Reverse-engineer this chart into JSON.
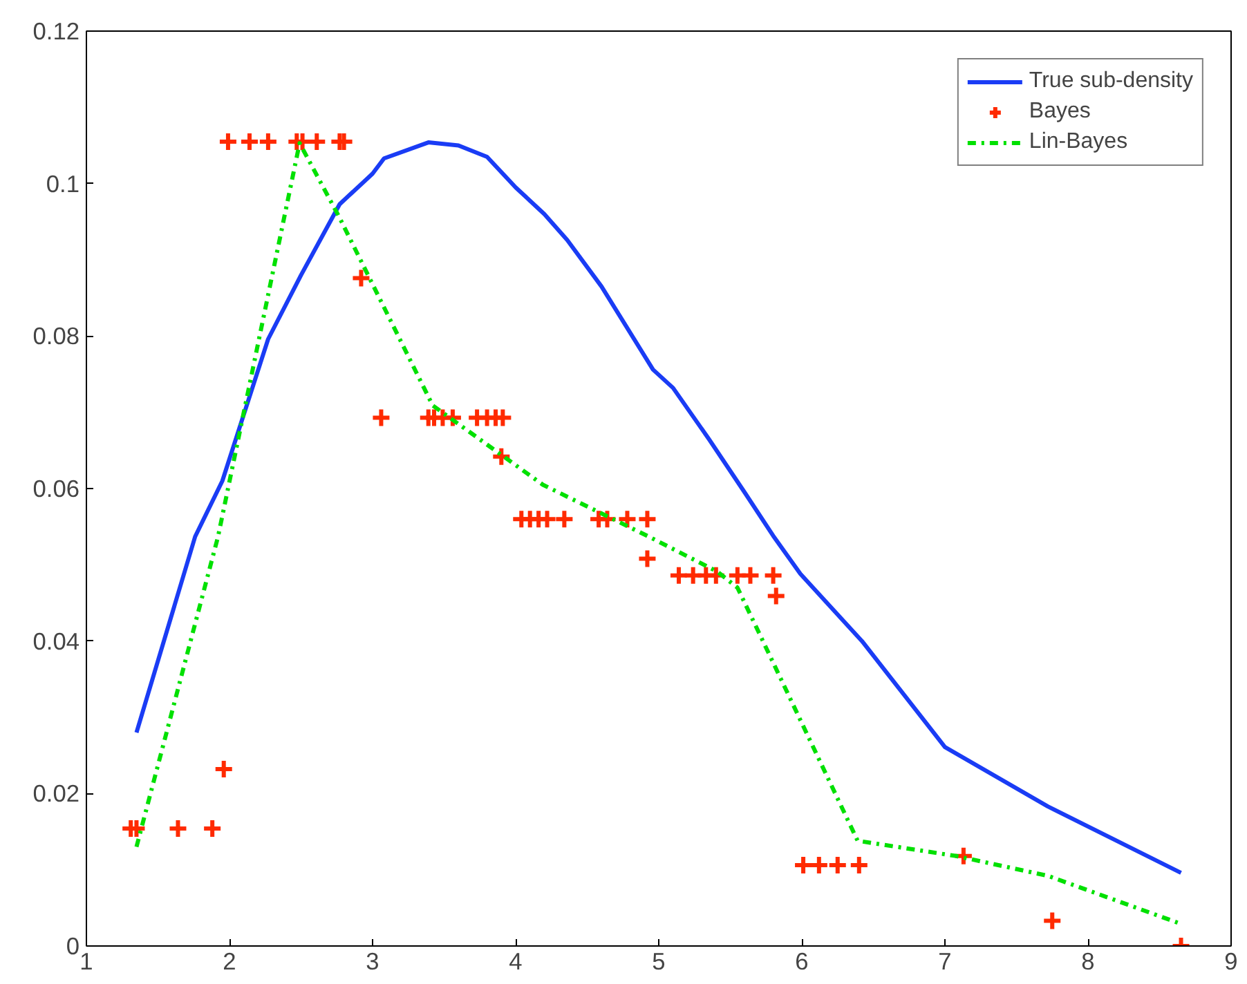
{
  "chart_data": {
    "type": "line",
    "xlim": [
      1,
      9
    ],
    "ylim": [
      0,
      0.12
    ],
    "xticks": [
      1,
      2,
      3,
      4,
      5,
      6,
      7,
      8,
      9
    ],
    "yticks": [
      0,
      0.02,
      0.04,
      0.06,
      0.08,
      0.1,
      0.12
    ],
    "grid": false,
    "legend": "top right",
    "series": [
      {
        "name": "True sub-density",
        "color": "#1a3cf5",
        "line_style": "solid",
        "x": [
          1.35,
          1.76,
          1.95,
          2.27,
          2.5,
          2.77,
          3.0,
          3.08,
          3.39,
          3.6,
          3.8,
          4.0,
          4.2,
          4.36,
          4.6,
          4.96,
          5.1,
          5.35,
          5.6,
          5.8,
          5.99,
          6.42,
          7.0,
          7.72,
          8.65
        ],
        "values": [
          0.028,
          0.0537,
          0.061,
          0.0796,
          0.088,
          0.0973,
          0.1013,
          0.1033,
          0.1054,
          0.105,
          0.1035,
          0.0995,
          0.096,
          0.0926,
          0.0865,
          0.0756,
          0.0732,
          0.0665,
          0.0595,
          0.0538,
          0.0488,
          0.04,
          0.0261,
          0.0183,
          0.0096
        ]
      },
      {
        "name": "Bayes",
        "type": "scatter",
        "color": "#ff2a00",
        "marker": "cross",
        "x": [
          1.31,
          1.35,
          1.64,
          1.88,
          1.96,
          1.99,
          2.14,
          2.27,
          2.47,
          2.51,
          2.61,
          2.77,
          2.8,
          2.92,
          3.06,
          3.39,
          3.43,
          3.49,
          3.56,
          3.73,
          3.8,
          3.86,
          3.91,
          3.9,
          4.04,
          4.1,
          4.16,
          4.22,
          4.34,
          4.58,
          4.64,
          4.78,
          4.92,
          4.92,
          5.14,
          5.24,
          5.33,
          5.4,
          5.55,
          5.64,
          5.8,
          5.82,
          6.01,
          6.12,
          6.25,
          6.4,
          7.13,
          7.75,
          8.65
        ],
        "values": [
          0.0154,
          0.0154,
          0.0154,
          0.0154,
          0.0232,
          0.1055,
          0.1055,
          0.1055,
          0.1055,
          0.1055,
          0.1055,
          0.1055,
          0.1055,
          0.0876,
          0.0693,
          0.0693,
          0.0693,
          0.0693,
          0.0693,
          0.0693,
          0.0693,
          0.0693,
          0.0693,
          0.0642,
          0.056,
          0.056,
          0.056,
          0.056,
          0.056,
          0.056,
          0.056,
          0.056,
          0.056,
          0.0508,
          0.0486,
          0.0486,
          0.0486,
          0.0486,
          0.0486,
          0.0486,
          0.0486,
          0.0459,
          0.0106,
          0.0106,
          0.0106,
          0.0106,
          0.0118,
          0.0033,
          0.0
        ]
      },
      {
        "name": "Lin-Bayes",
        "color": "#00e000",
        "line_style": "dashed",
        "x": [
          1.35,
          1.92,
          2.49,
          2.77,
          3.42,
          4.19,
          4.93,
          5.41,
          5.55,
          5.7,
          6.39,
          7.08,
          7.72,
          8.65
        ],
        "values": [
          0.013,
          0.0537,
          0.1053,
          0.0955,
          0.0709,
          0.0605,
          0.0537,
          0.0491,
          0.047,
          0.0411,
          0.0138,
          0.0118,
          0.0092,
          0.0029
        ]
      }
    ]
  }
}
